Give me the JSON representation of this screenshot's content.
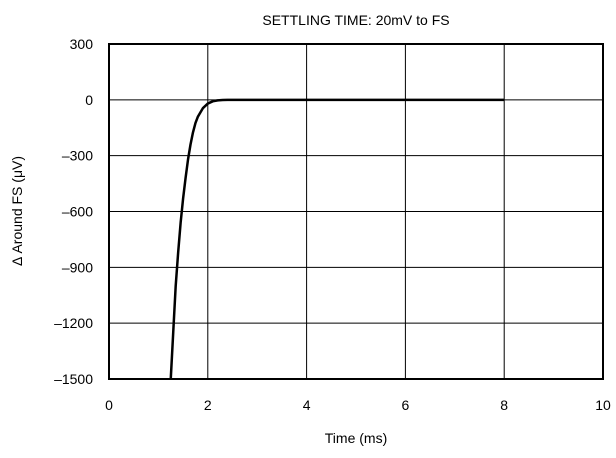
{
  "chart_data": {
    "type": "line",
    "title": "SETTLING TIME: 20mV to FS",
    "xlabel": "Time (ms)",
    "ylabel": "Δ Around FS (μV)",
    "xlim": [
      0,
      10
    ],
    "ylim": [
      -1500,
      300
    ],
    "xticks": [
      0,
      2,
      4,
      6,
      8,
      10
    ],
    "xtick_labels": [
      "0",
      "2",
      "4",
      "6",
      "8",
      "10"
    ],
    "yticks": [
      300,
      0,
      -300,
      -600,
      -900,
      -1200,
      -1500
    ],
    "ytick_labels": [
      "300",
      "0",
      "–300",
      "–600",
      "–900",
      "–1200",
      "–1500"
    ],
    "grid": true,
    "series": [
      {
        "x": [
          1.25,
          1.3,
          1.35,
          1.4,
          1.45,
          1.5,
          1.55,
          1.6,
          1.65,
          1.7,
          1.75,
          1.8,
          1.9,
          2.0,
          2.1,
          2.2,
          2.3,
          2.4,
          2.5,
          3.0,
          4.0,
          5.0,
          6.0,
          7.0,
          8.0
        ],
        "y": [
          -1500,
          -1250,
          -1000,
          -820,
          -660,
          -530,
          -420,
          -320,
          -240,
          -175,
          -125,
          -90,
          -45,
          -20,
          -8,
          -3,
          -1,
          0,
          0,
          0,
          0,
          0,
          0,
          0,
          0
        ]
      }
    ]
  }
}
